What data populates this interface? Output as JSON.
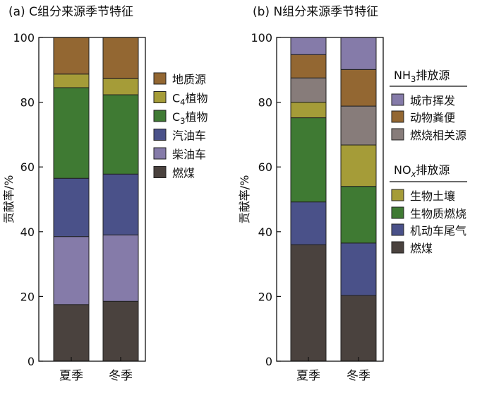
{
  "colors": {
    "燃煤": "#4a423e",
    "柴油车": "#857ba9",
    "汽油车": "#4a5189",
    "C3植物": "#3f7a33",
    "C4植物": "#a59c38",
    "地质源": "#936732",
    "生物土壤": "#a59c38",
    "生物质燃烧": "#3f7a33",
    "机动车尾气": "#4a5189",
    "城市挥发": "#857ba9",
    "动物粪便": "#936732",
    "燃烧相关源": "#877c7a"
  },
  "chart_data": [
    {
      "type": "bar",
      "stacked": true,
      "title": "(a) C组分来源季节特征",
      "ylabel": "贡献率/%",
      "ylim": [
        0,
        100
      ],
      "yticks": [
        "0",
        "20",
        "40",
        "60",
        "80",
        "100"
      ],
      "categories": [
        "夏季",
        "冬季"
      ],
      "series": [
        {
          "name": "燃煤",
          "values": [
            17.5,
            18.5
          ]
        },
        {
          "name": "柴油车",
          "values": [
            21.0,
            20.5
          ]
        },
        {
          "name": "汽油车",
          "values": [
            18.0,
            18.8
          ]
        },
        {
          "name": "C3植物",
          "values": [
            28.0,
            24.5
          ]
        },
        {
          "name": "C4植物",
          "values": [
            4.2,
            5.0
          ]
        },
        {
          "name": "地质源",
          "values": [
            11.3,
            12.7
          ]
        }
      ],
      "legend_items": [
        {
          "label": "地质源",
          "series": "地质源"
        },
        {
          "label": "C4植物",
          "series": "C4植物"
        },
        {
          "label": "C3植物",
          "series": "C3植物"
        },
        {
          "label": "汽油车",
          "series": "汽油车"
        },
        {
          "label": "柴油车",
          "series": "柴油车"
        },
        {
          "label": "燃煤",
          "series": "燃煤"
        }
      ],
      "legend_position": "right"
    },
    {
      "type": "bar",
      "stacked": true,
      "title": "(b) N组分来源季节特征",
      "ylabel": "贡献率/%",
      "ylim": [
        0,
        100
      ],
      "yticks": [
        "0",
        "20",
        "40",
        "60",
        "80",
        "100"
      ],
      "categories": [
        "夏季",
        "冬季"
      ],
      "series": [
        {
          "name": "燃煤",
          "values": [
            36.0,
            20.3
          ]
        },
        {
          "name": "机动车尾气",
          "values": [
            13.2,
            16.2
          ]
        },
        {
          "name": "生物质燃烧",
          "values": [
            26.0,
            17.5
          ]
        },
        {
          "name": "生物土壤",
          "values": [
            4.8,
            12.8
          ]
        },
        {
          "name": "燃烧相关源",
          "values": [
            7.5,
            12.0
          ]
        },
        {
          "name": "动物粪便",
          "values": [
            7.2,
            11.3
          ]
        },
        {
          "name": "城市挥发",
          "values": [
            5.3,
            9.9
          ]
        }
      ],
      "legend_groups": [
        {
          "header": "NH3排放源",
          "items": [
            {
              "label": "城市挥发",
              "series": "城市挥发"
            },
            {
              "label": "动物粪便",
              "series": "动物粪便"
            },
            {
              "label": "燃烧相关源",
              "series": "燃烧相关源"
            }
          ]
        },
        {
          "header": "NOx排放源",
          "items": [
            {
              "label": "生物土壤",
              "series": "生物土壤"
            },
            {
              "label": "生物质燃烧",
              "series": "生物质燃烧"
            },
            {
              "label": "机动车尾气",
              "series": "机动车尾气"
            },
            {
              "label": "燃煤",
              "series": "燃煤"
            }
          ]
        }
      ],
      "legend_position": "right"
    }
  ]
}
